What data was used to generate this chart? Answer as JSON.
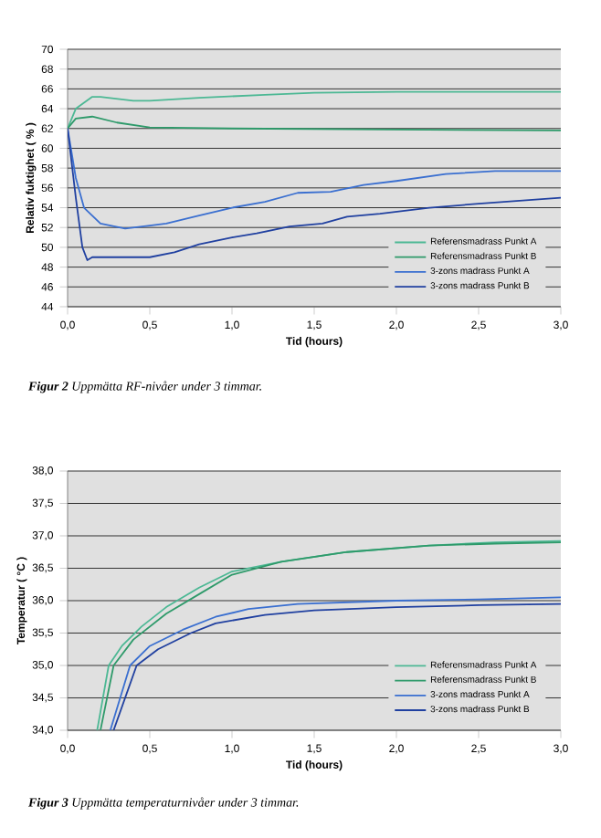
{
  "chart_data": [
    {
      "type": "line",
      "xlabel": "Tid (hours)",
      "ylabel": "Relativ fuktighet ( % )",
      "xlim": [
        0,
        3
      ],
      "ylim": [
        44,
        70
      ],
      "xticks": [
        {
          "value": 0,
          "label": "0,0"
        },
        {
          "value": 0.5,
          "label": "0,5"
        },
        {
          "value": 1,
          "label": "1,0"
        },
        {
          "value": 1.5,
          "label": "1,5"
        },
        {
          "value": 2,
          "label": "2,0"
        },
        {
          "value": 2.5,
          "label": "2,5"
        },
        {
          "value": 3,
          "label": "3,0"
        }
      ],
      "yticks": [
        44,
        46,
        48,
        50,
        52,
        54,
        56,
        58,
        60,
        62,
        64,
        66,
        68,
        70
      ],
      "grid": "y",
      "legend": "bottom right",
      "marker": "none",
      "line_style": "solid",
      "series": [
        {
          "name": "Referensmadrass Punkt A",
          "color": "#4cb894",
          "x": [
            0,
            0.05,
            0.15,
            0.2,
            0.4,
            0.5,
            0.8,
            1.2,
            1.5,
            2,
            3
          ],
          "values": [
            62,
            64,
            65.2,
            65.2,
            64.8,
            64.8,
            65.1,
            65.4,
            65.6,
            65.7,
            65.7
          ]
        },
        {
          "name": "Referensmadrass Punkt B",
          "color": "#2e9a6a",
          "x": [
            0,
            0.05,
            0.15,
            0.3,
            0.5,
            1,
            2,
            3
          ],
          "values": [
            62,
            63,
            63.2,
            62.6,
            62.1,
            62,
            61.9,
            61.8
          ]
        },
        {
          "name": "3-zons madrass Punkt A",
          "color": "#3a6fd0",
          "x": [
            0,
            0.05,
            0.1,
            0.2,
            0.35,
            0.5,
            0.6,
            0.8,
            1,
            1.2,
            1.4,
            1.6,
            1.8,
            2,
            2.3,
            2.6,
            3
          ],
          "values": [
            62,
            57,
            54,
            52.4,
            51.9,
            52.2,
            52.4,
            53.2,
            54,
            54.6,
            55.5,
            55.6,
            56.3,
            56.7,
            57.4,
            57.7,
            57.7
          ]
        },
        {
          "name": "3-zons madrass Punkt B",
          "color": "#2040a0",
          "x": [
            0,
            0.05,
            0.09,
            0.12,
            0.15,
            0.5,
            0.65,
            0.8,
            1,
            1.15,
            1.35,
            1.55,
            1.7,
            1.9,
            2.2,
            2.5,
            3
          ],
          "values": [
            62,
            55,
            50,
            48.7,
            49,
            49,
            49.5,
            50.3,
            51,
            51.4,
            52.1,
            52.4,
            53.1,
            53.4,
            54,
            54.4,
            55
          ]
        }
      ],
      "annotations": [
        "**Figur 2**  Uppmätta RF-nivåer under 3 timmar."
      ]
    },
    {
      "type": "line",
      "xlabel": "Tid (hours)",
      "ylabel": "Temperatur ( °C )",
      "xlim": [
        0,
        3
      ],
      "ylim": [
        34,
        38
      ],
      "xticks": [
        {
          "value": 0,
          "label": "0,0"
        },
        {
          "value": 0.5,
          "label": "0,5"
        },
        {
          "value": 1,
          "label": "1,0"
        },
        {
          "value": 1.5,
          "label": "1,5"
        },
        {
          "value": 2,
          "label": "2,0"
        },
        {
          "value": 2.5,
          "label": "2,5"
        },
        {
          "value": 3,
          "label": "3,0"
        }
      ],
      "yticks": [
        {
          "value": 34,
          "label": "34,0"
        },
        {
          "value": 34.5,
          "label": "34,5"
        },
        {
          "value": 35,
          "label": "35,0"
        },
        {
          "value": 35.5,
          "label": "35,5"
        },
        {
          "value": 36,
          "label": "36,0"
        },
        {
          "value": 36.5,
          "label": "36,5"
        },
        {
          "value": 37,
          "label": "37,0"
        },
        {
          "value": 37.5,
          "label": "37,5"
        },
        {
          "value": 38,
          "label": "38,0"
        }
      ],
      "grid": "y",
      "legend": "bottom right",
      "marker": "none",
      "line_style": "solid",
      "series": [
        {
          "name": "Referensmadrass Punkt A",
          "color": "#4cb894",
          "x": [
            0.18,
            0.25,
            0.33,
            0.45,
            0.6,
            0.8,
            1,
            1.3,
            1.7,
            2.2,
            2.6,
            3
          ],
          "values": [
            34,
            35,
            35.3,
            35.6,
            35.9,
            36.2,
            36.45,
            36.6,
            36.75,
            36.85,
            36.9,
            36.92
          ]
        },
        {
          "name": "Referensmadrass Punkt B",
          "color": "#2e9a6a",
          "x": [
            0.2,
            0.28,
            0.4,
            0.6,
            0.8,
            1,
            1.3,
            1.7,
            2.2,
            2.6,
            3
          ],
          "values": [
            34,
            35,
            35.4,
            35.8,
            36.1,
            36.4,
            36.6,
            36.75,
            36.85,
            36.88,
            36.9
          ]
        },
        {
          "name": "3-zons madrass Punkt A",
          "color": "#3a6fd0",
          "x": [
            0.26,
            0.38,
            0.5,
            0.7,
            0.9,
            1.1,
            1.4,
            2,
            2.5,
            3
          ],
          "values": [
            34,
            35,
            35.3,
            35.55,
            35.75,
            35.87,
            35.95,
            36,
            36.02,
            36.05
          ]
        },
        {
          "name": "3-zons madrass Punkt B",
          "color": "#2040a0",
          "x": [
            0.28,
            0.42,
            0.55,
            0.75,
            0.9,
            1.2,
            1.5,
            2,
            2.5,
            3
          ],
          "values": [
            34,
            35,
            35.25,
            35.5,
            35.65,
            35.78,
            35.85,
            35.9,
            35.93,
            35.95
          ]
        }
      ],
      "annotations": [
        "**Figur 3**  Uppmätta temperaturnivåer under 3 timmar."
      ]
    }
  ]
}
